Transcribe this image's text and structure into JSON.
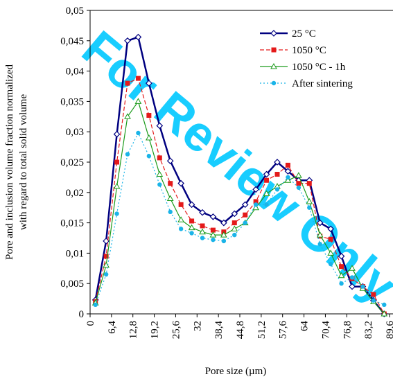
{
  "chart_data": {
    "type": "line",
    "xlabel": "Pore size (µm)",
    "ylabel": [
      "Pore and inclusion volume fraction normalized",
      "with regard to total solid volume"
    ],
    "watermark": "For Review Only",
    "x": [
      1.6,
      4.8,
      8,
      11.2,
      14.4,
      17.6,
      20.8,
      24,
      27.2,
      30.4,
      33.6,
      36.8,
      40,
      43.2,
      46.4,
      49.6,
      52.8,
      56,
      59.2,
      62.4,
      65.6,
      68.8,
      72,
      75.2,
      78.4,
      81.6,
      84.8,
      88
    ],
    "series": [
      {
        "name": "25 °C",
        "color": "#000080",
        "marker": "diamond",
        "line_style": "solid",
        "values": [
          0.0023,
          0.012,
          0.0296,
          0.045,
          0.0456,
          0.038,
          0.031,
          0.0252,
          0.0215,
          0.018,
          0.0167,
          0.016,
          0.015,
          0.0165,
          0.018,
          0.0205,
          0.023,
          0.025,
          0.0235,
          0.022,
          0.022,
          0.015,
          0.014,
          0.0095,
          0.0045,
          0.0045,
          0.0022,
          0
        ]
      },
      {
        "name": "1050 °C",
        "color": "#e41a1a",
        "marker": "square",
        "line_style": "dashed",
        "values": [
          0.002,
          0.0095,
          0.025,
          0.038,
          0.0388,
          0.0327,
          0.0257,
          0.0215,
          0.018,
          0.0153,
          0.0145,
          0.0138,
          0.0135,
          0.015,
          0.0163,
          0.0185,
          0.022,
          0.023,
          0.0245,
          0.0215,
          0.0215,
          0.0128,
          0.0123,
          0.0078,
          0.0058,
          0.0045,
          0.0032,
          0
        ]
      },
      {
        "name": "1050 °C - 1h",
        "color": "#1a9a1a",
        "marker": "triangle",
        "line_style": "solid",
        "values": [
          0.0018,
          0.008,
          0.021,
          0.0325,
          0.035,
          0.029,
          0.023,
          0.019,
          0.0155,
          0.0142,
          0.0135,
          0.013,
          0.013,
          0.014,
          0.015,
          0.0175,
          0.0198,
          0.021,
          0.022,
          0.0228,
          0.0185,
          0.013,
          0.01,
          0.0063,
          0.0075,
          0.0042,
          0.002,
          0
        ]
      },
      {
        "name": "After sintering",
        "color": "#1ab4e8",
        "marker": "circle",
        "line_style": "dotted",
        "values": [
          0.0015,
          0.0065,
          0.0165,
          0.0263,
          0.0298,
          0.026,
          0.0213,
          0.0168,
          0.014,
          0.0133,
          0.0125,
          0.0122,
          0.012,
          0.013,
          0.015,
          0.018,
          0.018,
          0.0205,
          0.0225,
          0.0208,
          0.0175,
          0.0115,
          0.0082,
          0.005,
          0.006,
          0.0045,
          0.0022,
          0.0015
        ]
      }
    ],
    "xlim": [
      0,
      89.6
    ],
    "xticks": [
      0,
      {
        "value": 6.4,
        "label": "6,4"
      },
      {
        "value": 12.8,
        "label": "12,8"
      },
      {
        "value": 19.2,
        "label": "19,2"
      },
      {
        "value": 25.6,
        "label": "25,6"
      },
      32,
      {
        "value": 38.4,
        "label": "38,4"
      },
      {
        "value": 44.8,
        "label": "44,8"
      },
      {
        "value": 51.2,
        "label": "51,2"
      },
      {
        "value": 57.6,
        "label": "57,6"
      },
      64,
      {
        "value": 70.4,
        "label": "70,4"
      },
      {
        "value": 76.8,
        "label": "76,8"
      },
      {
        "value": 83.2,
        "label": "83,2"
      },
      {
        "value": 89.6,
        "label": "89,6"
      }
    ],
    "ylim": [
      0,
      0.05
    ],
    "yticks": [
      0,
      {
        "value": 0.005,
        "label": "0,005"
      },
      {
        "value": 0.01,
        "label": "0,01"
      },
      {
        "value": 0.015,
        "label": "0,015"
      },
      {
        "value": 0.02,
        "label": "0,02"
      },
      {
        "value": 0.025,
        "label": "0,025"
      },
      {
        "value": 0.03,
        "label": "0,03"
      },
      {
        "value": 0.035,
        "label": "0,035"
      },
      {
        "value": 0.04,
        "label": "0,04"
      },
      {
        "value": 0.045,
        "label": "0,045"
      },
      {
        "value": 0.05,
        "label": "0,05"
      }
    ],
    "legend": "upper-right"
  }
}
